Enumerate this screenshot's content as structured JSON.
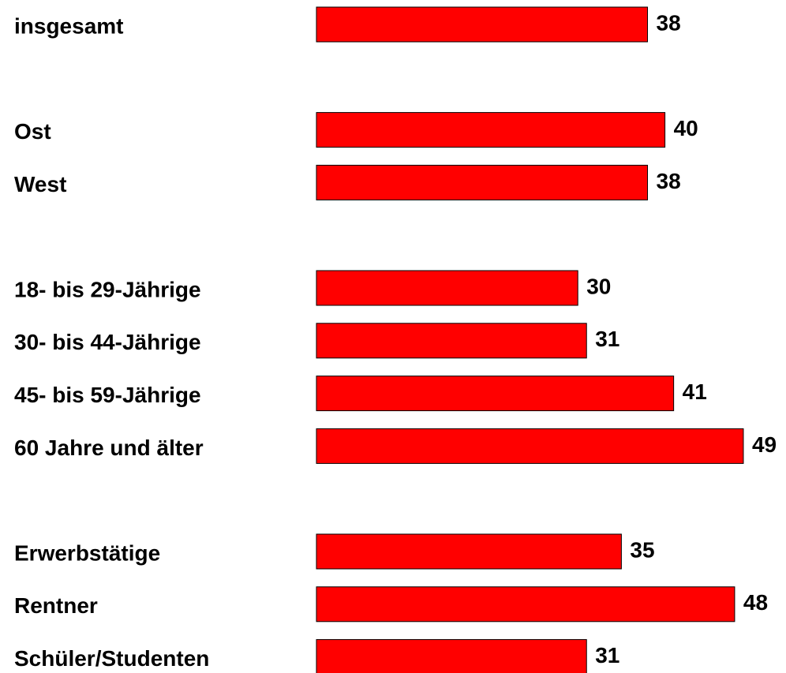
{
  "chart_data": {
    "type": "bar",
    "orientation": "horizontal",
    "color": "#ff0000",
    "categories": [
      "insgesamt",
      null,
      "Ost",
      "West",
      null,
      "18- bis 29-Jährige",
      "30- bis 44-Jährige",
      "45- bis 59-Jährige",
      "60 Jahre und älter",
      null,
      "Erwerbstätige",
      "Rentner",
      "Schüler/Studenten"
    ],
    "values": [
      38,
      null,
      40,
      38,
      null,
      30,
      31,
      41,
      49,
      null,
      35,
      48,
      31
    ]
  }
}
